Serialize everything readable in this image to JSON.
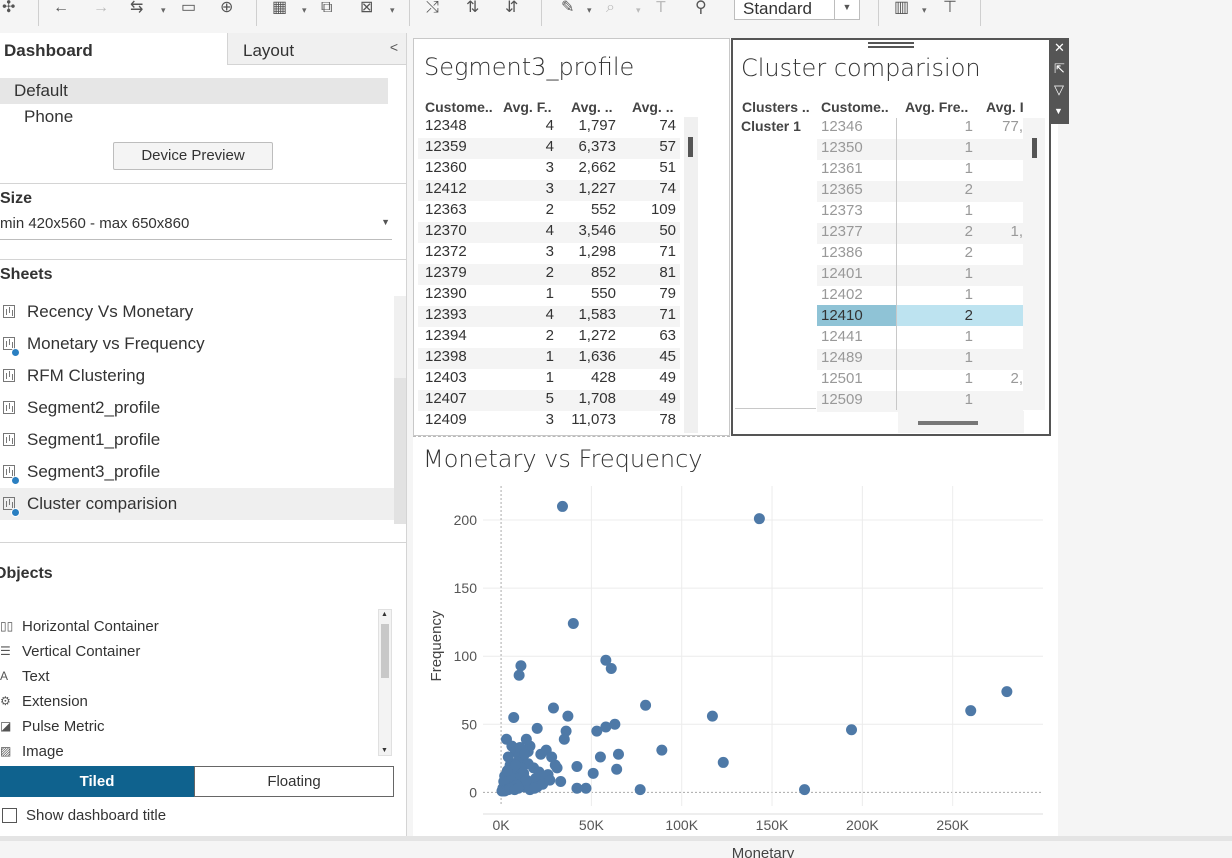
{
  "toolbar": {
    "view_mode": "Standard"
  },
  "panel_tabs": {
    "dashboard": "Dashboard",
    "layout": "Layout"
  },
  "device": {
    "default": "Default",
    "phone": "Phone",
    "preview_button": "Device Preview"
  },
  "size": {
    "heading": "Size",
    "value": "min 420x560 - max 650x860"
  },
  "sheets": {
    "heading": "Sheets",
    "items": [
      {
        "label": "Recency Vs Monetary",
        "badge": false
      },
      {
        "label": "Monetary vs Frequency",
        "badge": true
      },
      {
        "label": "RFM Clustering",
        "badge": false
      },
      {
        "label": "Segment2_profile",
        "badge": false
      },
      {
        "label": "Segment1_profile",
        "badge": false
      },
      {
        "label": "Segment3_profile",
        "badge": true
      },
      {
        "label": "Cluster comparision",
        "badge": true
      }
    ]
  },
  "objects": {
    "heading": "Objects",
    "items": [
      {
        "label": "Horizontal Container",
        "icon": "horizontal-container-icon"
      },
      {
        "label": "Vertical Container",
        "icon": "vertical-container-icon"
      },
      {
        "label": "Text",
        "icon": "text-icon"
      },
      {
        "label": "Extension",
        "icon": "extension-icon"
      },
      {
        "label": "Pulse Metric",
        "icon": "pulse-metric-icon"
      },
      {
        "label": "Image",
        "icon": "image-icon"
      }
    ]
  },
  "layout_toggle": {
    "tiled": "Tiled",
    "floating": "Floating"
  },
  "show_title": {
    "label": "Show dashboard title",
    "checked": false
  },
  "segment3": {
    "title": "Segment3_profile",
    "headers": [
      "Custome..",
      "Avg. F..",
      "Avg. ..",
      "Avg. .."
    ],
    "rows": [
      [
        "12348",
        "4",
        "1,797",
        "74"
      ],
      [
        "12359",
        "4",
        "6,373",
        "57"
      ],
      [
        "12360",
        "3",
        "2,662",
        "51"
      ],
      [
        "12412",
        "3",
        "1,227",
        "74"
      ],
      [
        "12363",
        "2",
        "552",
        "109"
      ],
      [
        "12370",
        "4",
        "3,546",
        "50"
      ],
      [
        "12372",
        "3",
        "1,298",
        "71"
      ],
      [
        "12379",
        "2",
        "852",
        "81"
      ],
      [
        "12390",
        "1",
        "550",
        "79"
      ],
      [
        "12393",
        "4",
        "1,583",
        "71"
      ],
      [
        "12394",
        "2",
        "1,272",
        "63"
      ],
      [
        "12398",
        "1",
        "1,636",
        "45"
      ],
      [
        "12403",
        "1",
        "428",
        "49"
      ],
      [
        "12407",
        "5",
        "1,708",
        "49"
      ],
      [
        "12409",
        "3",
        "11,073",
        "78"
      ]
    ]
  },
  "cluster": {
    "title": "Cluster comparision",
    "headers": [
      "Clusters ..",
      "Custome..",
      "Avg. Fre..",
      "Avg. I"
    ],
    "cluster_label": "Cluster 1",
    "rows": [
      {
        "id": "12346",
        "freq": "1",
        "other": "77,",
        "dim": true
      },
      {
        "id": "12350",
        "freq": "1",
        "other": "",
        "dim": true
      },
      {
        "id": "12361",
        "freq": "1",
        "other": "",
        "dim": true
      },
      {
        "id": "12365",
        "freq": "2",
        "other": "",
        "dim": true
      },
      {
        "id": "12373",
        "freq": "1",
        "other": "",
        "dim": true
      },
      {
        "id": "12377",
        "freq": "2",
        "other": "1,",
        "dim": true
      },
      {
        "id": "12386",
        "freq": "2",
        "other": "",
        "dim": true
      },
      {
        "id": "12401",
        "freq": "1",
        "other": "",
        "dim": true
      },
      {
        "id": "12402",
        "freq": "1",
        "other": "",
        "dim": true
      },
      {
        "id": "12410",
        "freq": "2",
        "other": "",
        "dim": false
      },
      {
        "id": "12441",
        "freq": "1",
        "other": "",
        "dim": true
      },
      {
        "id": "12489",
        "freq": "1",
        "other": "",
        "dim": true
      },
      {
        "id": "12501",
        "freq": "1",
        "other": "2,",
        "dim": true
      },
      {
        "id": "12509",
        "freq": "1",
        "other": "",
        "dim": true
      }
    ]
  },
  "scatter_title": "Monetary vs Frequency",
  "chart_data": {
    "type": "scatter",
    "title": "Monetary vs Frequency",
    "xlabel": "Monetary",
    "ylabel": "Frequency",
    "xlim": [
      -10000,
      300000
    ],
    "ylim": [
      -10,
      225
    ],
    "xticks": [
      "0K",
      "50K",
      "100K",
      "150K",
      "200K",
      "250K"
    ],
    "xtick_values": [
      0,
      50000,
      100000,
      150000,
      200000,
      250000
    ],
    "yticks": [
      "0",
      "50",
      "100",
      "150",
      "200"
    ],
    "ytick_values": [
      0,
      50,
      100,
      150,
      200
    ],
    "color": "#4e79a7",
    "grid": true,
    "points": [
      [
        34000,
        210
      ],
      [
        143000,
        201
      ],
      [
        40000,
        124
      ],
      [
        58000,
        97
      ],
      [
        61000,
        91
      ],
      [
        11000,
        93
      ],
      [
        10000,
        86
      ],
      [
        80000,
        64
      ],
      [
        29000,
        62
      ],
      [
        37000,
        56
      ],
      [
        117000,
        56
      ],
      [
        260000,
        60
      ],
      [
        280000,
        74
      ],
      [
        194000,
        46
      ],
      [
        20000,
        47
      ],
      [
        36000,
        45
      ],
      [
        53000,
        45
      ],
      [
        58000,
        48
      ],
      [
        63000,
        50
      ],
      [
        89000,
        31
      ],
      [
        35000,
        39
      ],
      [
        123000,
        22
      ],
      [
        65000,
        28
      ],
      [
        55000,
        26
      ],
      [
        42000,
        19
      ],
      [
        30000,
        20
      ],
      [
        33000,
        8
      ],
      [
        64000,
        17
      ],
      [
        51000,
        14
      ],
      [
        42000,
        3
      ],
      [
        47000,
        3
      ],
      [
        77000,
        2
      ],
      [
        168000,
        2
      ],
      [
        26000,
        13
      ],
      [
        31000,
        18
      ],
      [
        16000,
        34
      ],
      [
        7000,
        55
      ],
      [
        14000,
        39
      ],
      [
        3000,
        39
      ],
      [
        6000,
        34
      ],
      [
        8000,
        30
      ],
      [
        10000,
        27
      ],
      [
        12000,
        24
      ],
      [
        15000,
        21
      ],
      [
        18000,
        18
      ],
      [
        21000,
        15
      ],
      [
        24000,
        12
      ],
      [
        4000,
        26
      ],
      [
        5000,
        20
      ],
      [
        7000,
        15
      ],
      [
        9000,
        10
      ],
      [
        11000,
        6
      ],
      [
        13000,
        4
      ],
      [
        2000,
        12
      ],
      [
        3000,
        6
      ],
      [
        1000,
        3
      ],
      [
        500,
        1
      ],
      [
        2500,
        2
      ],
      [
        4500,
        4
      ],
      [
        6000,
        8
      ],
      [
        8500,
        5
      ],
      [
        17000,
        7
      ],
      [
        19000,
        10
      ],
      [
        22000,
        28
      ],
      [
        25000,
        31
      ],
      [
        28000,
        26
      ],
      [
        9000,
        22
      ],
      [
        5000,
        12
      ],
      [
        6500,
        18
      ],
      [
        12500,
        14
      ],
      [
        1500,
        8
      ],
      [
        3500,
        16
      ],
      [
        14000,
        9
      ],
      [
        20000,
        4
      ],
      [
        23000,
        6
      ],
      [
        27000,
        9
      ],
      [
        15000,
        30
      ],
      [
        10500,
        33
      ],
      [
        1000,
        1
      ],
      [
        2000,
        1
      ],
      [
        3000,
        2
      ],
      [
        4000,
        2
      ],
      [
        5000,
        3
      ],
      [
        6000,
        3
      ],
      [
        7500,
        2
      ],
      [
        9500,
        3
      ],
      [
        16000,
        2
      ],
      [
        18500,
        3
      ],
      [
        11000,
        18
      ],
      [
        8000,
        20
      ],
      [
        13000,
        28
      ]
    ]
  }
}
